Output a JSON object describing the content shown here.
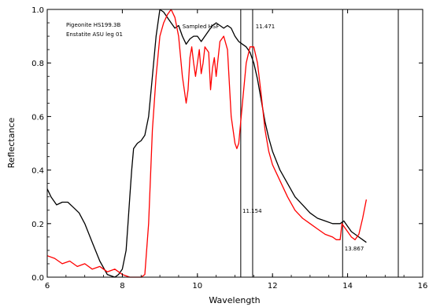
{
  "chart_data": {
    "type": "line",
    "title": "",
    "xlabel": "Wavelength",
    "ylabel": "Reflectance",
    "xlim": [
      6,
      16
    ],
    "ylim": [
      0.0,
      1.0
    ],
    "x_ticks": [
      6,
      8,
      10,
      12,
      14,
      16
    ],
    "x_tick_labels": [
      "6",
      "8",
      "10",
      "12",
      "14",
      "16"
    ],
    "y_ticks": [
      0.0,
      0.2,
      0.4,
      0.6,
      0.8,
      1.0
    ],
    "y_tick_labels": [
      "0.0",
      "0.2",
      "0.4",
      "0.6",
      "0.8",
      "1.0"
    ],
    "grid": false,
    "legend_entries": [
      "Pigeonite HS199.3B",
      "Enstatite ASU leg 01"
    ],
    "legend_placement": "top-left",
    "series": [
      {
        "name": "Pigeonite HS199.3B",
        "color": "#000000",
        "x": [
          6.0,
          6.1,
          6.25,
          6.4,
          6.55,
          6.7,
          6.85,
          7.0,
          7.2,
          7.4,
          7.6,
          7.8,
          7.9,
          8.0,
          8.1,
          8.15,
          8.2,
          8.25,
          8.3,
          8.4,
          8.5,
          8.6,
          8.7,
          8.8,
          8.9,
          9.0,
          9.1,
          9.2,
          9.3,
          9.4,
          9.5,
          9.6,
          9.7,
          9.8,
          9.9,
          10.0,
          10.1,
          10.2,
          10.3,
          10.4,
          10.5,
          10.6,
          10.7,
          10.8,
          10.9,
          11.0,
          11.1,
          11.2,
          11.3,
          11.4,
          11.5,
          11.6,
          11.7,
          11.8,
          11.9,
          12.0,
          12.2,
          12.4,
          12.6,
          12.8,
          13.0,
          13.2,
          13.4,
          13.6,
          13.8,
          13.9,
          14.0,
          14.1,
          14.2,
          14.3,
          14.4,
          14.5
        ],
        "y": [
          0.33,
          0.3,
          0.27,
          0.28,
          0.28,
          0.26,
          0.24,
          0.2,
          0.13,
          0.06,
          0.01,
          0.0,
          0.01,
          0.03,
          0.1,
          0.2,
          0.3,
          0.4,
          0.48,
          0.5,
          0.51,
          0.53,
          0.6,
          0.75,
          0.9,
          1.0,
          0.99,
          0.97,
          0.95,
          0.93,
          0.94,
          0.9,
          0.87,
          0.89,
          0.9,
          0.9,
          0.88,
          0.9,
          0.92,
          0.94,
          0.95,
          0.94,
          0.93,
          0.94,
          0.93,
          0.9,
          0.88,
          0.87,
          0.86,
          0.84,
          0.8,
          0.74,
          0.66,
          0.58,
          0.52,
          0.47,
          0.4,
          0.35,
          0.3,
          0.27,
          0.24,
          0.22,
          0.21,
          0.2,
          0.2,
          0.21,
          0.19,
          0.17,
          0.16,
          0.15,
          0.14,
          0.13
        ]
      },
      {
        "name": "Enstatite ASU leg 01",
        "color": "#ff0000",
        "x": [
          6.0,
          6.2,
          6.4,
          6.6,
          6.8,
          7.0,
          7.2,
          7.4,
          7.6,
          7.8,
          8.0,
          8.2,
          8.4,
          8.5,
          8.6,
          8.7,
          8.8,
          8.9,
          9.0,
          9.1,
          9.2,
          9.3,
          9.4,
          9.5,
          9.6,
          9.7,
          9.75,
          9.8,
          9.85,
          9.9,
          9.95,
          10.0,
          10.05,
          10.1,
          10.15,
          10.2,
          10.3,
          10.35,
          10.4,
          10.45,
          10.5,
          10.6,
          10.7,
          10.8,
          10.9,
          10.95,
          11.0,
          11.05,
          11.1,
          11.2,
          11.3,
          11.4,
          11.5,
          11.6,
          11.7,
          11.8,
          11.9,
          12.0,
          12.2,
          12.4,
          12.6,
          12.8,
          13.0,
          13.2,
          13.4,
          13.6,
          13.7,
          13.8,
          13.85,
          13.9,
          14.0,
          14.1,
          14.2,
          14.3,
          14.4,
          14.5
        ],
        "y": [
          0.08,
          0.07,
          0.05,
          0.06,
          0.04,
          0.05,
          0.03,
          0.04,
          0.02,
          0.03,
          0.01,
          0.0,
          0.0,
          0.0,
          0.01,
          0.2,
          0.55,
          0.75,
          0.9,
          0.95,
          0.98,
          1.0,
          0.97,
          0.9,
          0.75,
          0.65,
          0.7,
          0.82,
          0.86,
          0.8,
          0.75,
          0.8,
          0.85,
          0.76,
          0.8,
          0.86,
          0.84,
          0.7,
          0.78,
          0.82,
          0.75,
          0.88,
          0.9,
          0.85,
          0.6,
          0.55,
          0.5,
          0.48,
          0.5,
          0.65,
          0.8,
          0.86,
          0.86,
          0.8,
          0.68,
          0.55,
          0.47,
          0.42,
          0.36,
          0.3,
          0.25,
          0.22,
          0.2,
          0.18,
          0.16,
          0.15,
          0.14,
          0.14,
          0.2,
          0.19,
          0.17,
          0.15,
          0.14,
          0.16,
          0.22,
          0.29
        ]
      }
    ],
    "vertical_lines": [
      11.154,
      11.471,
      13.867,
      15.35
    ],
    "annotations": [
      {
        "text": "11.471",
        "x": 11.55,
        "y": 0.93
      },
      {
        "text": "11.154",
        "x": 11.2,
        "y": 0.24
      },
      {
        "text": "13.867",
        "x": 13.92,
        "y": 0.1
      },
      {
        "text": "Sampled HSF",
        "x": 9.6,
        "y": 0.93
      }
    ]
  }
}
